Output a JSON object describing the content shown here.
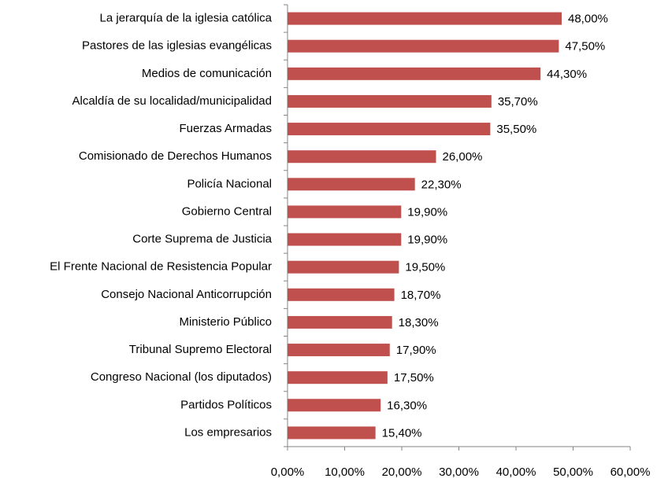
{
  "chart_data": {
    "type": "bar",
    "orientation": "horizontal",
    "categories": [
      "La jerarquía de la iglesia católica",
      "Pastores de las iglesias evangélicas",
      "Medios de comunicación",
      "Alcaldía de su localidad/municipalidad",
      "Fuerzas Armadas",
      "Comisionado de Derechos  Humanos",
      "Policía Nacional",
      "Gobierno Central",
      "Corte Suprema de Justicia",
      "El Frente Nacional de Resistencia Popular",
      "Consejo Nacional Anticorrupción",
      "Ministerio Público",
      "Tribunal Supremo Electoral",
      "Congreso Nacional (los diputados)",
      "Partidos Políticos",
      "Los empresarios"
    ],
    "values": [
      48.0,
      47.5,
      44.3,
      35.7,
      35.5,
      26.0,
      22.3,
      19.9,
      19.9,
      19.5,
      18.7,
      18.3,
      17.9,
      17.5,
      16.3,
      15.4
    ],
    "value_labels": [
      "48,00%",
      "47,50%",
      "44,30%",
      "35,70%",
      "35,50%",
      "26,00%",
      "22,30%",
      "19,90%",
      "19,90%",
      "19,50%",
      "18,70%",
      "18,30%",
      "17,90%",
      "17,50%",
      "16,30%",
      "15,40%"
    ],
    "color": "#c0504d",
    "xlim": [
      0,
      60
    ],
    "xticks": [
      {
        "value": 0,
        "label": "0,00%"
      },
      {
        "value": 10,
        "label": "10,00%"
      },
      {
        "value": 20,
        "label": "20,00%"
      },
      {
        "value": 30,
        "label": "30,00%"
      },
      {
        "value": 40,
        "label": "40,00%"
      },
      {
        "value": 50,
        "label": "50,00%"
      },
      {
        "value": 60,
        "label": "60,00%"
      }
    ],
    "grid": false
  }
}
